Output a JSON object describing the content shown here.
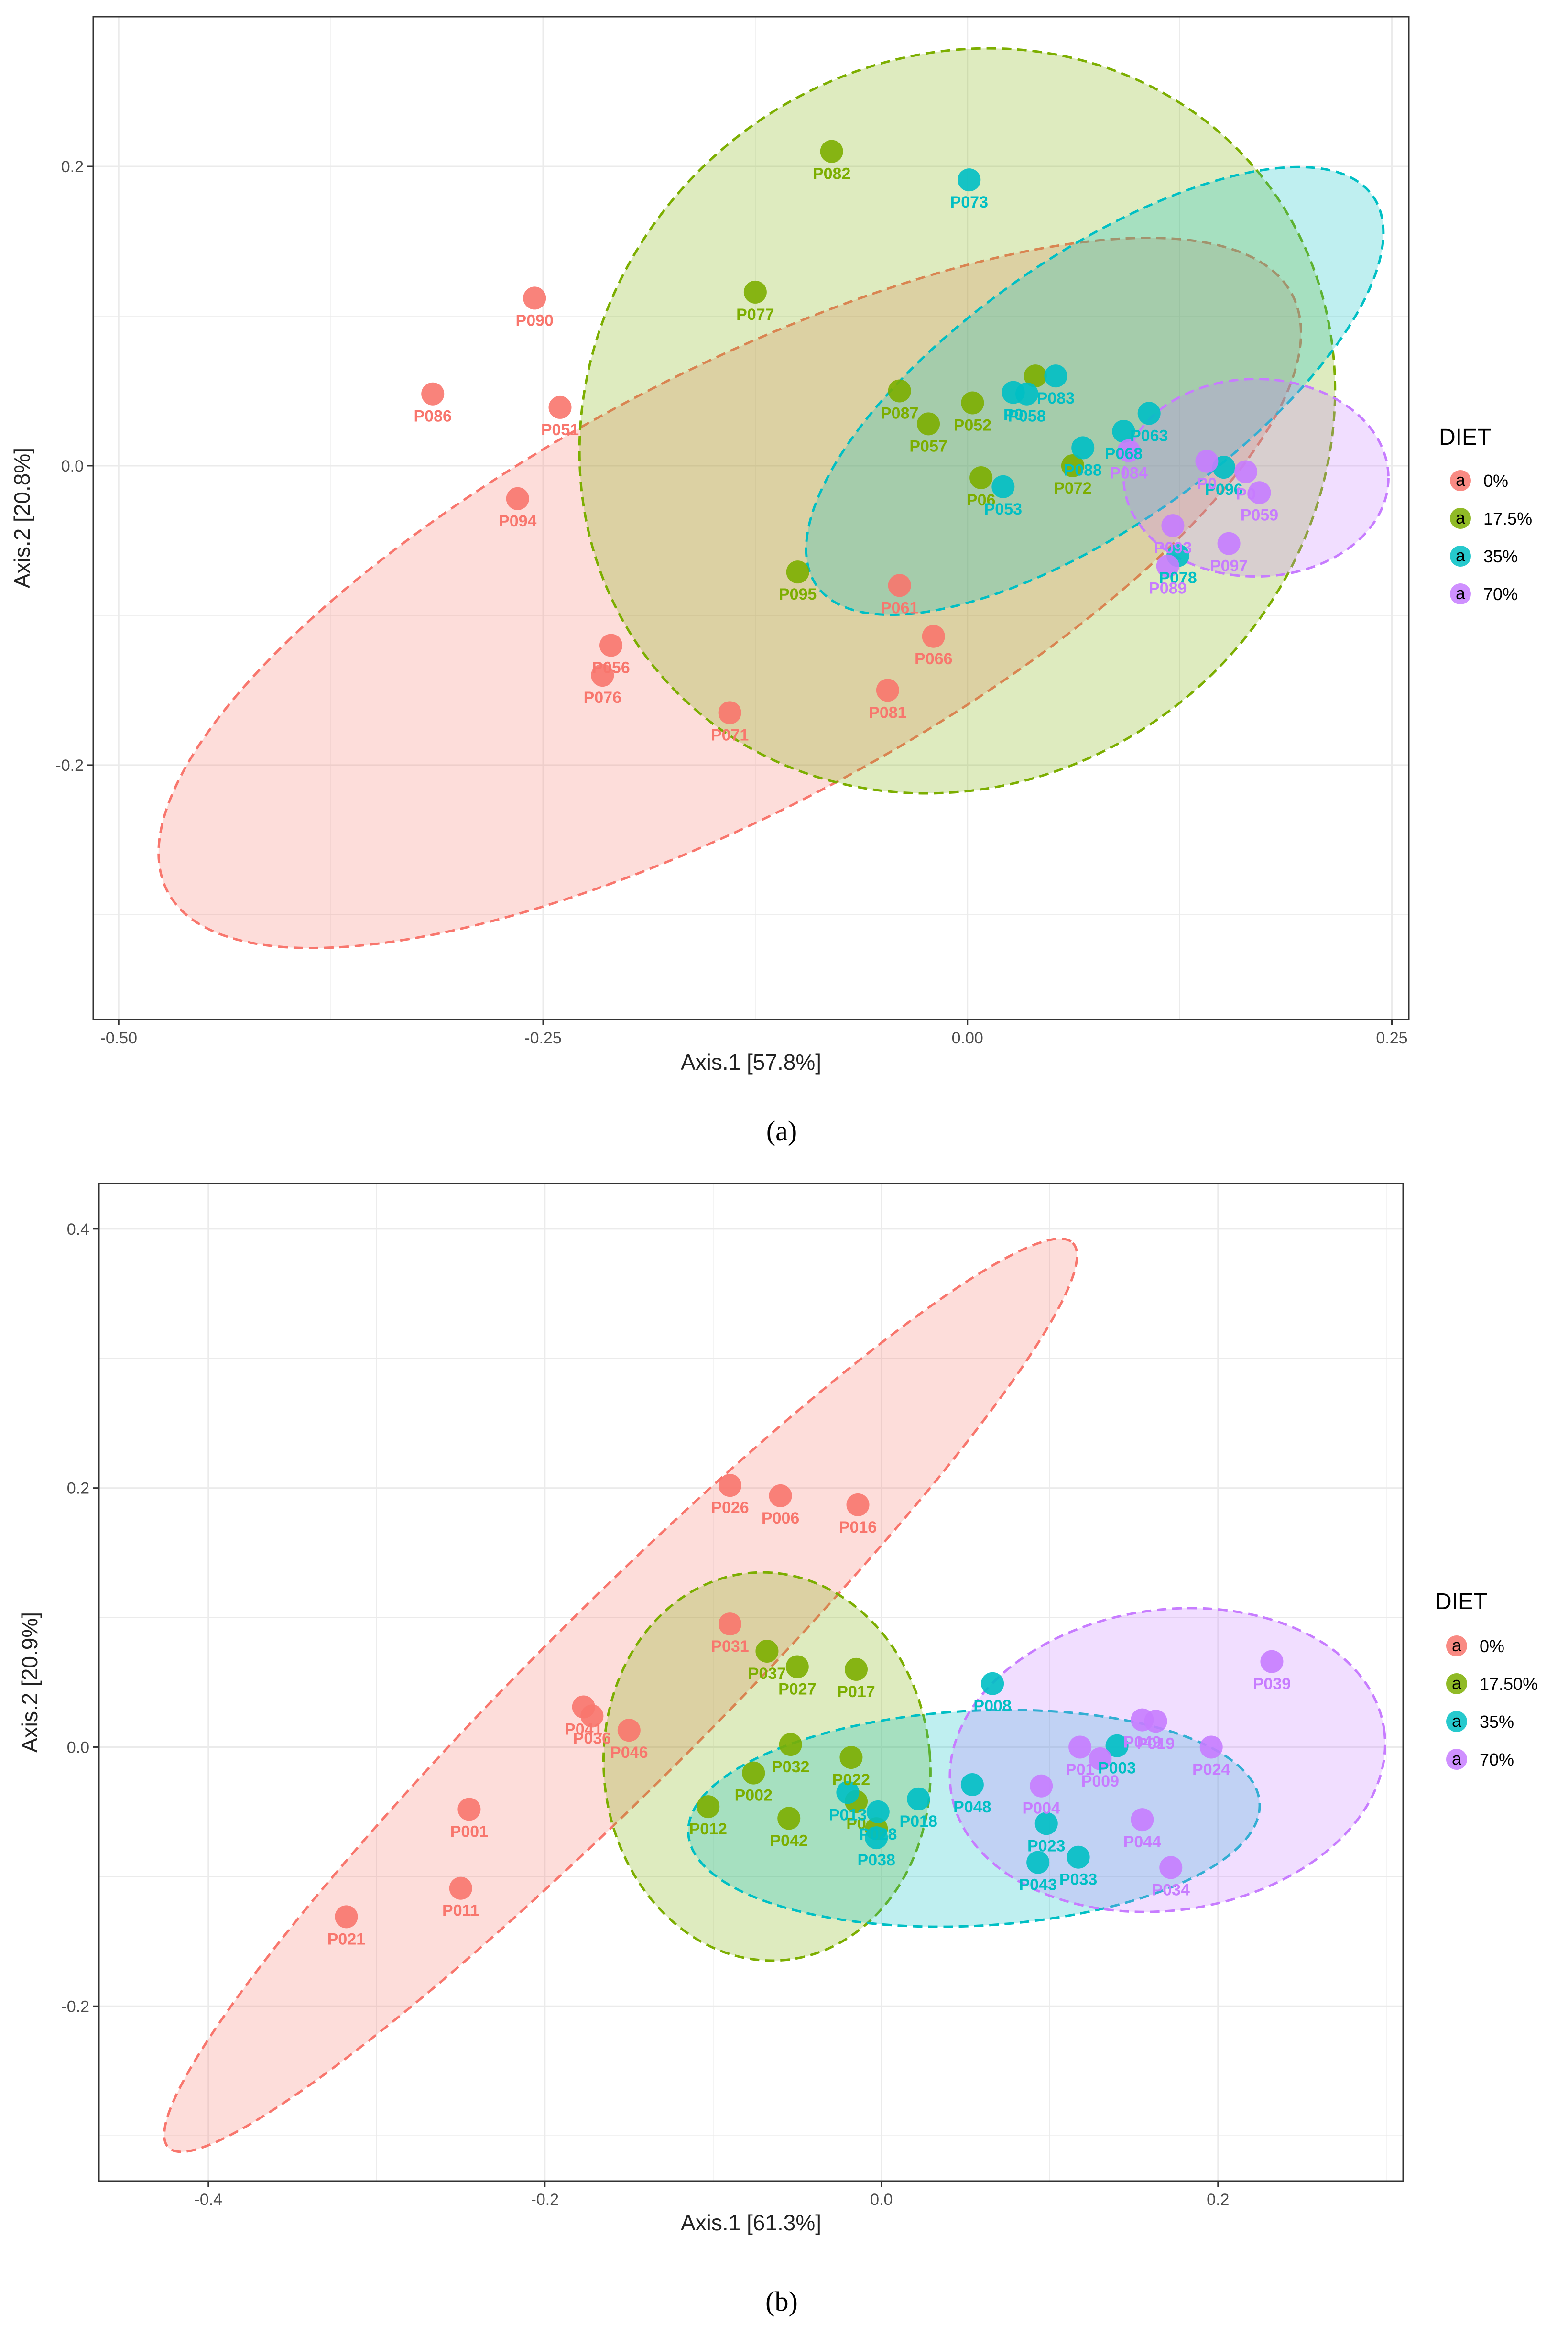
{
  "colors": {
    "0": "#F8766D",
    "17.5": "#7CAE00",
    "35": "#00BFC4",
    "70": "#C77CFF"
  },
  "chart_data": [
    {
      "panel": "a",
      "caption": "(a)",
      "type": "scatter",
      "xlabel": "Axis.1   [57.8%]",
      "ylabel": "Axis.2   [20.8%]",
      "xlim": [
        -0.515,
        0.26
      ],
      "ylim": [
        -0.37,
        0.3
      ],
      "xticks": [
        -0.5,
        -0.25,
        0.0,
        0.25
      ],
      "xtick_labels": [
        "-0.50",
        "-0.25",
        "0.00",
        "0.25"
      ],
      "yticks": [
        -0.2,
        0.0,
        0.2
      ],
      "ytick_labels": [
        "-0.2",
        "0.0",
        "0.2"
      ],
      "legend": {
        "title": "DIET",
        "position": "right",
        "entries": [
          {
            "key": "0",
            "label": "0%"
          },
          {
            "key": "17.5",
            "label": "17.5%"
          },
          {
            "key": "35",
            "label": "35%"
          },
          {
            "key": "70",
            "label": "70%"
          }
        ]
      },
      "ellipses": [
        {
          "group": "0",
          "cx": -0.14,
          "cy": -0.085,
          "rx": 0.375,
          "ry": 0.145,
          "angle": -28
        },
        {
          "group": "17.5",
          "cx": -0.006,
          "cy": 0.03,
          "rx": 0.23,
          "ry": 0.24,
          "angle": -40
        },
        {
          "group": "35",
          "cx": 0.075,
          "cy": 0.05,
          "rx": 0.2,
          "ry": 0.09,
          "angle": -35
        },
        {
          "group": "70",
          "cx": 0.17,
          "cy": -0.008,
          "rx": 0.078,
          "ry": 0.066,
          "angle": 0
        }
      ],
      "series": [
        {
          "name": "0%",
          "key": "0",
          "points": [
            {
              "id": "P090",
              "x": -0.255,
              "y": 0.112
            },
            {
              "id": "P086",
              "x": -0.315,
              "y": 0.048
            },
            {
              "id": "P051",
              "x": -0.24,
              "y": 0.039
            },
            {
              "id": "P094",
              "x": -0.265,
              "y": -0.022
            },
            {
              "id": "P056",
              "x": -0.21,
              "y": -0.12
            },
            {
              "id": "P076",
              "x": -0.215,
              "y": -0.14
            },
            {
              "id": "P071",
              "x": -0.14,
              "y": -0.165
            },
            {
              "id": "P061",
              "x": -0.04,
              "y": -0.08
            },
            {
              "id": "P066",
              "x": -0.02,
              "y": -0.114
            },
            {
              "id": "P081",
              "x": -0.047,
              "y": -0.15
            }
          ]
        },
        {
          "name": "17.5%",
          "key": "17.5",
          "points": [
            {
              "id": "P082",
              "x": -0.08,
              "y": 0.21
            },
            {
              "id": "P077",
              "x": -0.125,
              "y": 0.116
            },
            {
              "id": "P087",
              "x": -0.04,
              "y": 0.05
            },
            {
              "id": "P052",
              "x": 0.003,
              "y": 0.042
            },
            {
              "id": "P057",
              "x": -0.023,
              "y": 0.028
            },
            {
              "id": "P06",
              "x": 0.008,
              "y": -0.008
            },
            {
              "id": "P072",
              "x": 0.062,
              "y": 0.0
            },
            {
              "id": "P095",
              "x": -0.1,
              "y": -0.071
            },
            {
              "id": "",
              "x": 0.04,
              "y": 0.06
            }
          ]
        },
        {
          "name": "35%",
          "key": "35",
          "points": [
            {
              "id": "P073",
              "x": 0.001,
              "y": 0.191
            },
            {
              "id": "P083",
              "x": 0.052,
              "y": 0.06
            },
            {
              "id": "P058",
              "x": 0.035,
              "y": 0.048
            },
            {
              "id": "P0",
              "x": 0.027,
              "y": 0.049
            },
            {
              "id": "P053",
              "x": 0.021,
              "y": -0.014
            },
            {
              "id": "P088",
              "x": 0.068,
              "y": 0.012
            },
            {
              "id": "P068",
              "x": 0.092,
              "y": 0.023
            },
            {
              "id": "P063",
              "x": 0.107,
              "y": 0.035
            },
            {
              "id": "P096",
              "x": 0.151,
              "y": -0.001
            },
            {
              "id": "P078",
              "x": 0.124,
              "y": -0.06
            }
          ]
        },
        {
          "name": "70%",
          "key": "70",
          "points": [
            {
              "id": "P084",
              "x": 0.095,
              "y": 0.01
            },
            {
              "id": "P0",
              "x": 0.141,
              "y": 0.003
            },
            {
              "id": "P0",
              "x": 0.164,
              "y": -0.004
            },
            {
              "id": "P059",
              "x": 0.172,
              "y": -0.018
            },
            {
              "id": "P093",
              "x": 0.121,
              "y": -0.04
            },
            {
              "id": "P097",
              "x": 0.154,
              "y": -0.052
            },
            {
              "id": "P089",
              "x": 0.118,
              "y": -0.067
            }
          ]
        }
      ]
    },
    {
      "panel": "b",
      "caption": "(b)",
      "type": "scatter",
      "xlabel": "Axis.1   [61.3%]",
      "ylabel": "Axis.2   [20.9%]",
      "xlim": [
        -0.465,
        0.31
      ],
      "ylim": [
        -0.335,
        0.435
      ],
      "xticks": [
        -0.4,
        -0.2,
        0.0,
        0.2
      ],
      "xtick_labels": [
        "-0.4",
        "-0.2",
        "0.0",
        "0.2"
      ],
      "yticks": [
        -0.2,
        0.0,
        0.2,
        0.4
      ],
      "ytick_labels": [
        "-0.2",
        "0.0",
        "0.2",
        "0.4"
      ],
      "legend": {
        "title": "DIET",
        "position": "right",
        "entries": [
          {
            "key": "0",
            "label": "0%"
          },
          {
            "key": "17.5",
            "label": "17.50%"
          },
          {
            "key": "35",
            "label": "35%"
          },
          {
            "key": "70",
            "label": "70%"
          }
        ]
      },
      "ellipses": [
        {
          "group": "0",
          "cx": -0.155,
          "cy": 0.04,
          "rx": 0.38,
          "ry": 0.068,
          "angle": -45
        },
        {
          "group": "17.5",
          "cx": -0.068,
          "cy": -0.015,
          "rx": 0.097,
          "ry": 0.15,
          "angle": -5
        },
        {
          "group": "35",
          "cx": 0.055,
          "cy": -0.055,
          "rx": 0.17,
          "ry": 0.083,
          "angle": -3
        },
        {
          "group": "70",
          "cx": 0.17,
          "cy": -0.01,
          "rx": 0.13,
          "ry": 0.116,
          "angle": -8
        }
      ],
      "series": [
        {
          "name": "0%",
          "key": "0",
          "points": [
            {
              "id": "P026",
              "x": -0.09,
              "y": 0.202
            },
            {
              "id": "P006",
              "x": -0.06,
              "y": 0.194
            },
            {
              "id": "P016",
              "x": -0.014,
              "y": 0.187
            },
            {
              "id": "P031",
              "x": -0.09,
              "y": 0.095
            },
            {
              "id": "P041",
              "x": -0.177,
              "y": 0.031
            },
            {
              "id": "P036",
              "x": -0.172,
              "y": 0.024
            },
            {
              "id": "P046",
              "x": -0.15,
              "y": 0.013
            },
            {
              "id": "P001",
              "x": -0.245,
              "y": -0.048
            },
            {
              "id": "P011",
              "x": -0.25,
              "y": -0.109
            },
            {
              "id": "P021",
              "x": -0.318,
              "y": -0.131
            }
          ]
        },
        {
          "name": "17.50%",
          "key": "17.5",
          "points": [
            {
              "id": "P037",
              "x": -0.068,
              "y": 0.074
            },
            {
              "id": "P027",
              "x": -0.05,
              "y": 0.062
            },
            {
              "id": "P017",
              "x": -0.015,
              "y": 0.06
            },
            {
              "id": "P032",
              "x": -0.054,
              "y": 0.002
            },
            {
              "id": "P022",
              "x": -0.018,
              "y": -0.008
            },
            {
              "id": "P002",
              "x": -0.076,
              "y": -0.02
            },
            {
              "id": "P012",
              "x": -0.103,
              "y": -0.046
            },
            {
              "id": "P042",
              "x": -0.055,
              "y": -0.055
            },
            {
              "id": "P0",
              "x": -0.015,
              "y": -0.042
            },
            {
              "id": "",
              "x": -0.003,
              "y": -0.063
            }
          ]
        },
        {
          "name": "35%",
          "key": "35",
          "points": [
            {
              "id": "P008",
              "x": 0.066,
              "y": 0.049
            },
            {
              "id": "P048",
              "x": 0.054,
              "y": -0.029
            },
            {
              "id": "P018",
              "x": 0.022,
              "y": -0.04
            },
            {
              "id": "P003",
              "x": 0.14,
              "y": 0.001
            },
            {
              "id": "P023",
              "x": 0.098,
              "y": -0.059
            },
            {
              "id": "P043",
              "x": 0.093,
              "y": -0.089
            },
            {
              "id": "P033",
              "x": 0.117,
              "y": -0.085
            },
            {
              "id": "P013",
              "x": -0.02,
              "y": -0.035
            },
            {
              "id": "P028",
              "x": -0.002,
              "y": -0.05
            },
            {
              "id": "P038",
              "x": -0.003,
              "y": -0.07
            }
          ]
        },
        {
          "name": "70%",
          "key": "70",
          "points": [
            {
              "id": "P039",
              "x": 0.232,
              "y": 0.066
            },
            {
              "id": "P01",
              "x": 0.118,
              "y": 0.0
            },
            {
              "id": "P009",
              "x": 0.13,
              "y": -0.009
            },
            {
              "id": "P049",
              "x": 0.155,
              "y": 0.021
            },
            {
              "id": "P019",
              "x": 0.163,
              "y": 0.02
            },
            {
              "id": "P024",
              "x": 0.196,
              "y": 0.0
            },
            {
              "id": "P004",
              "x": 0.095,
              "y": -0.03
            },
            {
              "id": "P044",
              "x": 0.155,
              "y": -0.056
            },
            {
              "id": "P034",
              "x": 0.172,
              "y": -0.093
            }
          ]
        }
      ]
    }
  ]
}
